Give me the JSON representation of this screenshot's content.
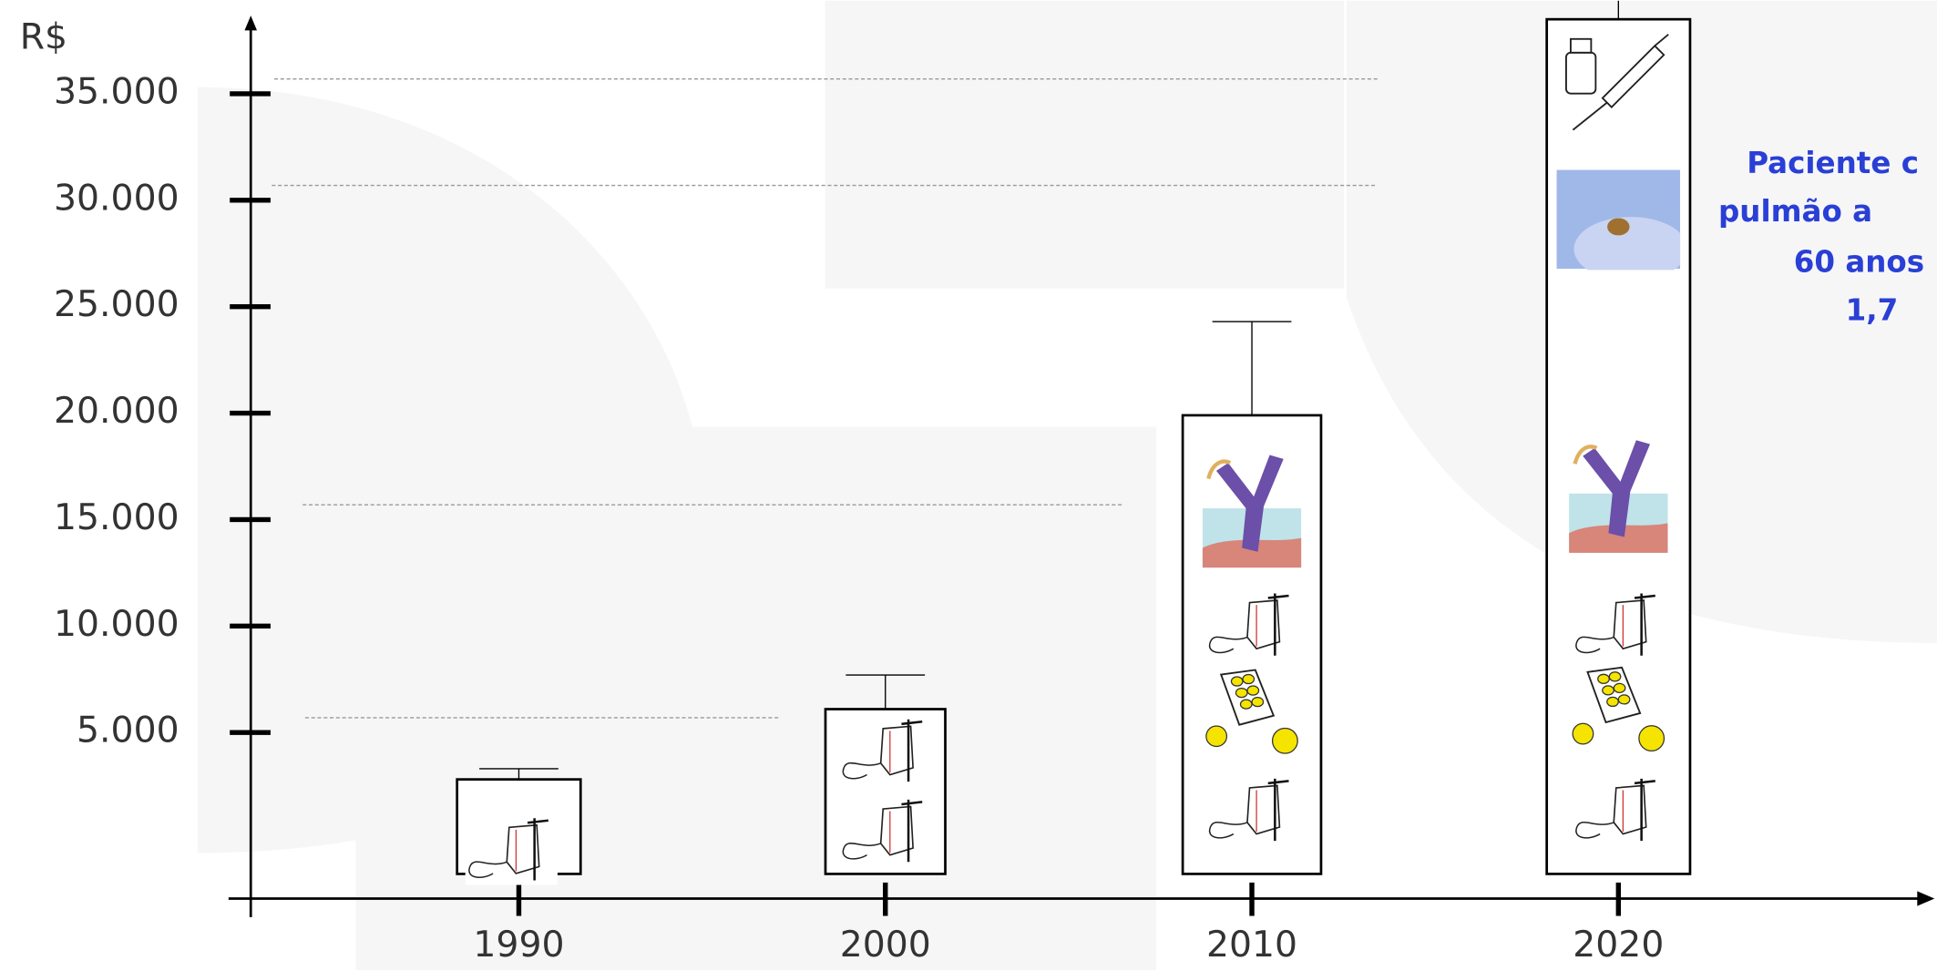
{
  "chart_data": {
    "type": "bar",
    "y_axis_label": "R$",
    "categories": [
      "1990",
      "2000",
      "2010",
      "2020"
    ],
    "values": [
      2800,
      6100,
      19900,
      38500
    ],
    "error_tops": [
      3300,
      7700,
      24300,
      40000
    ],
    "ylim": [
      -2800,
      38500
    ],
    "yticks": [
      {
        "value": 5000,
        "label": "5.000"
      },
      {
        "value": 10000,
        "label": "10.000"
      },
      {
        "value": 15000,
        "label": "15.000"
      },
      {
        "value": 20000,
        "label": "20.000"
      },
      {
        "value": 25000,
        "label": "25.000"
      },
      {
        "value": 30000,
        "label": "30.000"
      },
      {
        "value": 35000,
        "label": "35.000"
      }
    ],
    "annotation_lines": [
      "Paciente c",
      "pulmão a",
      "60 anos",
      "1,7"
    ],
    "color": "#000000",
    "grid": true
  }
}
